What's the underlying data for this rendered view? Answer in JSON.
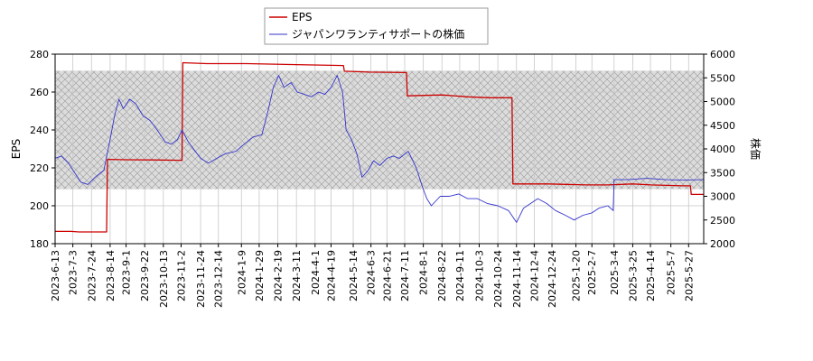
{
  "chart_data": {
    "type": "line",
    "grid": true,
    "legend_placement": "top-center",
    "axes": {
      "left": {
        "label": "EPS",
        "ylim": [
          180,
          280
        ],
        "ticks": [
          180,
          200,
          220,
          240,
          260,
          280
        ]
      },
      "right": {
        "label": "株価",
        "ylim": [
          2000,
          6000
        ],
        "ticks": [
          2000,
          2500,
          3000,
          3500,
          4000,
          4500,
          5000,
          5500,
          6000
        ]
      },
      "x": {
        "range": [
          "2023-06-13",
          "2025-06-13"
        ],
        "tick_labels": [
          "2023-6-13",
          "2023-7-3",
          "2023-7-24",
          "2023-8-14",
          "2023-9-1",
          "2023-9-22",
          "2023-10-13",
          "2023-11-2",
          "2023-11-24",
          "2023-12-14",
          "2024-1-9",
          "2024-1-29",
          "2024-2-19",
          "2024-3-11",
          "2024-4-1",
          "2024-4-19",
          "2024-5-14",
          "2024-6-3",
          "2024-6-21",
          "2024-7-11",
          "2024-8-1",
          "2024-8-22",
          "2024-9-11",
          "2024-10-3",
          "2024-10-24",
          "2024-11-14",
          "2024-12-4",
          "2024-12-24",
          "2025-1-20",
          "2025-2-7",
          "2025-3-4",
          "2025-3-25",
          "2025-4-14",
          "2025-5-7",
          "2025-5-27"
        ],
        "tick_dates": [
          "2023-06-13",
          "2023-07-03",
          "2023-07-24",
          "2023-08-14",
          "2023-09-01",
          "2023-09-22",
          "2023-10-13",
          "2023-11-02",
          "2023-11-24",
          "2023-12-14",
          "2024-01-09",
          "2024-01-29",
          "2024-02-19",
          "2024-03-11",
          "2024-04-01",
          "2024-04-19",
          "2024-05-14",
          "2024-06-03",
          "2024-06-21",
          "2024-07-11",
          "2024-08-01",
          "2024-08-22",
          "2024-09-11",
          "2024-10-03",
          "2024-10-24",
          "2024-11-14",
          "2024-12-04",
          "2024-12-24",
          "2025-01-20",
          "2025-02-07",
          "2025-03-04",
          "2025-03-25",
          "2025-04-14",
          "2025-05-07",
          "2025-05-27"
        ]
      }
    },
    "hatched_band": {
      "axis": "right",
      "range": [
        3150,
        5650
      ]
    },
    "series": [
      {
        "name": "EPS",
        "axis": "left",
        "color": "#cc0000",
        "points": [
          [
            "2023-06-13",
            186.5
          ],
          [
            "2023-07-01",
            186.5
          ],
          [
            "2023-07-10",
            186.2
          ],
          [
            "2023-08-10",
            186.2
          ],
          [
            "2023-08-11",
            224.5
          ],
          [
            "2023-09-01",
            224.3
          ],
          [
            "2023-10-01",
            224.2
          ],
          [
            "2023-11-03",
            224.0
          ],
          [
            "2023-11-04",
            275.5
          ],
          [
            "2023-12-01",
            275.0
          ],
          [
            "2024-01-15",
            275.0
          ],
          [
            "2024-03-11",
            274.5
          ],
          [
            "2024-05-03",
            274.0
          ],
          [
            "2024-05-04",
            271.0
          ],
          [
            "2024-06-01",
            270.5
          ],
          [
            "2024-07-13",
            270.3
          ],
          [
            "2024-07-14",
            258.0
          ],
          [
            "2024-08-22",
            258.5
          ],
          [
            "2024-09-20",
            257.5
          ],
          [
            "2024-10-15",
            257.0
          ],
          [
            "2024-11-09",
            257.0
          ],
          [
            "2024-11-10",
            211.5
          ],
          [
            "2024-12-20",
            211.5
          ],
          [
            "2025-02-01",
            211.0
          ],
          [
            "2025-02-25",
            211.0
          ],
          [
            "2025-03-25",
            211.5
          ],
          [
            "2025-04-15",
            211.0
          ],
          [
            "2025-05-20",
            210.5
          ],
          [
            "2025-05-29",
            210.5
          ],
          [
            "2025-05-30",
            206.0
          ],
          [
            "2025-06-13",
            206.0
          ]
        ]
      },
      {
        "name": "ジャパンワランティサポートの株価",
        "axis": "right",
        "color": "#3333cc",
        "points": [
          [
            "2023-06-13",
            3800
          ],
          [
            "2023-06-20",
            3850
          ],
          [
            "2023-06-28",
            3700
          ],
          [
            "2023-07-05",
            3500
          ],
          [
            "2023-07-12",
            3300
          ],
          [
            "2023-07-20",
            3250
          ],
          [
            "2023-07-28",
            3400
          ],
          [
            "2023-08-07",
            3550
          ],
          [
            "2023-08-14",
            4200
          ],
          [
            "2023-08-19",
            4700
          ],
          [
            "2023-08-24",
            5050
          ],
          [
            "2023-08-29",
            4850
          ],
          [
            "2023-09-05",
            5050
          ],
          [
            "2023-09-12",
            4950
          ],
          [
            "2023-09-20",
            4700
          ],
          [
            "2023-09-28",
            4600
          ],
          [
            "2023-10-06",
            4400
          ],
          [
            "2023-10-15",
            4150
          ],
          [
            "2023-10-22",
            4100
          ],
          [
            "2023-10-29",
            4200
          ],
          [
            "2023-11-03",
            4400
          ],
          [
            "2023-11-10",
            4150
          ],
          [
            "2023-11-20",
            3900
          ],
          [
            "2023-11-24",
            3800
          ],
          [
            "2023-12-03",
            3700
          ],
          [
            "2023-12-12",
            3800
          ],
          [
            "2023-12-22",
            3900
          ],
          [
            "2024-01-03",
            3950
          ],
          [
            "2024-01-12",
            4100
          ],
          [
            "2024-01-22",
            4250
          ],
          [
            "2024-02-01",
            4300
          ],
          [
            "2024-02-08",
            4800
          ],
          [
            "2024-02-14",
            5300
          ],
          [
            "2024-02-20",
            5550
          ],
          [
            "2024-02-26",
            5300
          ],
          [
            "2024-03-05",
            5400
          ],
          [
            "2024-03-12",
            5200
          ],
          [
            "2024-03-20",
            5150
          ],
          [
            "2024-03-28",
            5100
          ],
          [
            "2024-04-05",
            5200
          ],
          [
            "2024-04-12",
            5150
          ],
          [
            "2024-04-19",
            5300
          ],
          [
            "2024-04-26",
            5550
          ],
          [
            "2024-05-02",
            5200
          ],
          [
            "2024-05-06",
            4400
          ],
          [
            "2024-05-12",
            4200
          ],
          [
            "2024-05-18",
            3900
          ],
          [
            "2024-05-24",
            3400
          ],
          [
            "2024-05-31",
            3550
          ],
          [
            "2024-06-06",
            3750
          ],
          [
            "2024-06-13",
            3650
          ],
          [
            "2024-06-21",
            3800
          ],
          [
            "2024-06-28",
            3850
          ],
          [
            "2024-07-05",
            3800
          ],
          [
            "2024-07-15",
            3950
          ],
          [
            "2024-07-24",
            3600
          ],
          [
            "2024-07-31",
            3200
          ],
          [
            "2024-08-05",
            2950
          ],
          [
            "2024-08-10",
            2800
          ],
          [
            "2024-08-20",
            3000
          ],
          [
            "2024-08-30",
            3000
          ],
          [
            "2024-09-10",
            3050
          ],
          [
            "2024-09-20",
            2950
          ],
          [
            "2024-10-01",
            2950
          ],
          [
            "2024-10-12",
            2850
          ],
          [
            "2024-10-24",
            2800
          ],
          [
            "2024-11-05",
            2700
          ],
          [
            "2024-11-14",
            2450
          ],
          [
            "2024-11-22",
            2750
          ],
          [
            "2024-11-30",
            2850
          ],
          [
            "2024-12-08",
            2950
          ],
          [
            "2024-12-18",
            2850
          ],
          [
            "2024-12-28",
            2700
          ],
          [
            "2025-01-08",
            2600
          ],
          [
            "2025-01-18",
            2500
          ],
          [
            "2025-01-28",
            2600
          ],
          [
            "2025-02-07",
            2650
          ],
          [
            "2025-02-15",
            2750
          ],
          [
            "2025-02-25",
            2800
          ],
          [
            "2025-03-03",
            2700
          ],
          [
            "2025-03-04",
            3350
          ],
          [
            "2025-03-20",
            3350
          ],
          [
            "2025-04-10",
            3380
          ],
          [
            "2025-05-01",
            3350
          ],
          [
            "2025-05-20",
            3340
          ],
          [
            "2025-06-13",
            3350
          ]
        ]
      }
    ]
  }
}
